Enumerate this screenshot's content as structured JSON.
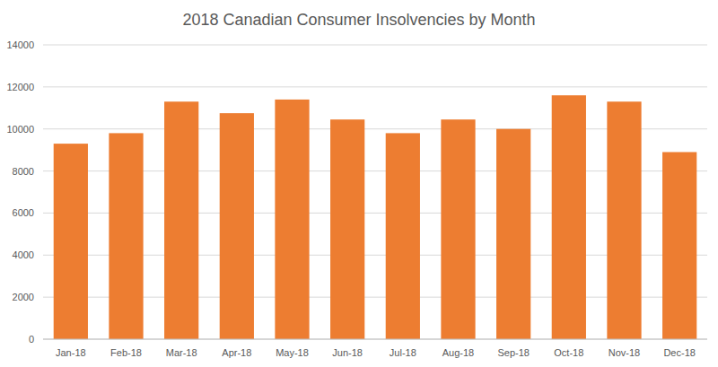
{
  "chart_data": {
    "type": "bar",
    "title": "2018 Canadian Consumer Insolvencies by Month",
    "categories": [
      "Jan-18",
      "Feb-18",
      "Mar-18",
      "Apr-18",
      "May-18",
      "Jun-18",
      "Jul-18",
      "Aug-18",
      "Sep-18",
      "Oct-18",
      "Nov-18",
      "Dec-18"
    ],
    "values": [
      9300,
      9800,
      11300,
      10750,
      11400,
      10450,
      9800,
      10450,
      10000,
      11600,
      11300,
      8900
    ],
    "color": "#ed7d31",
    "ylim": [
      0,
      14000
    ],
    "yticks": [
      0,
      2000,
      4000,
      6000,
      8000,
      10000,
      12000,
      14000
    ],
    "grid": true
  }
}
